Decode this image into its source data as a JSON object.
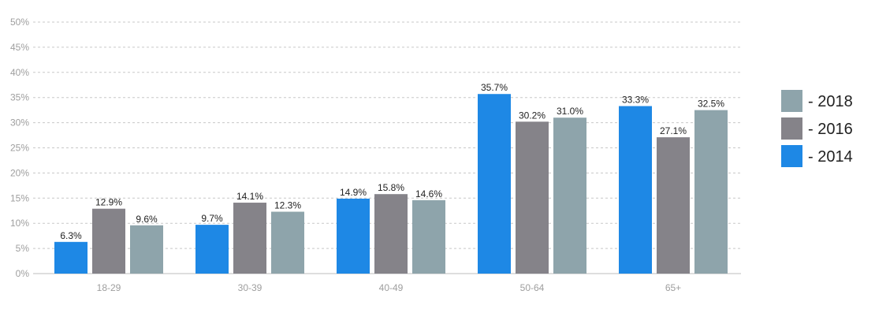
{
  "chart_data": {
    "type": "bar",
    "categories": [
      "18-29",
      "30-39",
      "40-49",
      "50-64",
      "65+"
    ],
    "series": [
      {
        "name": "- 2014",
        "color": "#1e88e5",
        "values": [
          6.3,
          9.7,
          14.9,
          35.7,
          33.3
        ],
        "labels": [
          "6.3%",
          "9.7%",
          "14.9%",
          "35.7%",
          "33.3%"
        ]
      },
      {
        "name": "- 2016",
        "color": "#858389",
        "values": [
          12.9,
          14.1,
          15.8,
          30.2,
          27.1
        ],
        "labels": [
          "12.9%",
          "14.1%",
          "15.8%",
          "30.2%",
          "27.1%"
        ]
      },
      {
        "name": "- 2018",
        "color": "#8ea4ab",
        "values": [
          9.6,
          12.3,
          14.6,
          31.0,
          32.5
        ],
        "labels": [
          "9.6%",
          "12.3%",
          "14.6%",
          "31.0%",
          "32.5%"
        ]
      }
    ],
    "y_ticks": [
      "0%",
      "5%",
      "10%",
      "15%",
      "20%",
      "25%",
      "30%",
      "35%",
      "40%",
      "45%",
      "50%"
    ],
    "ylim": [
      0,
      50
    ],
    "grid": true,
    "legend_position": "right",
    "legend_order": [
      "- 2018",
      "- 2016",
      "- 2014"
    ],
    "title": "",
    "xlabel": "",
    "ylabel": ""
  }
}
